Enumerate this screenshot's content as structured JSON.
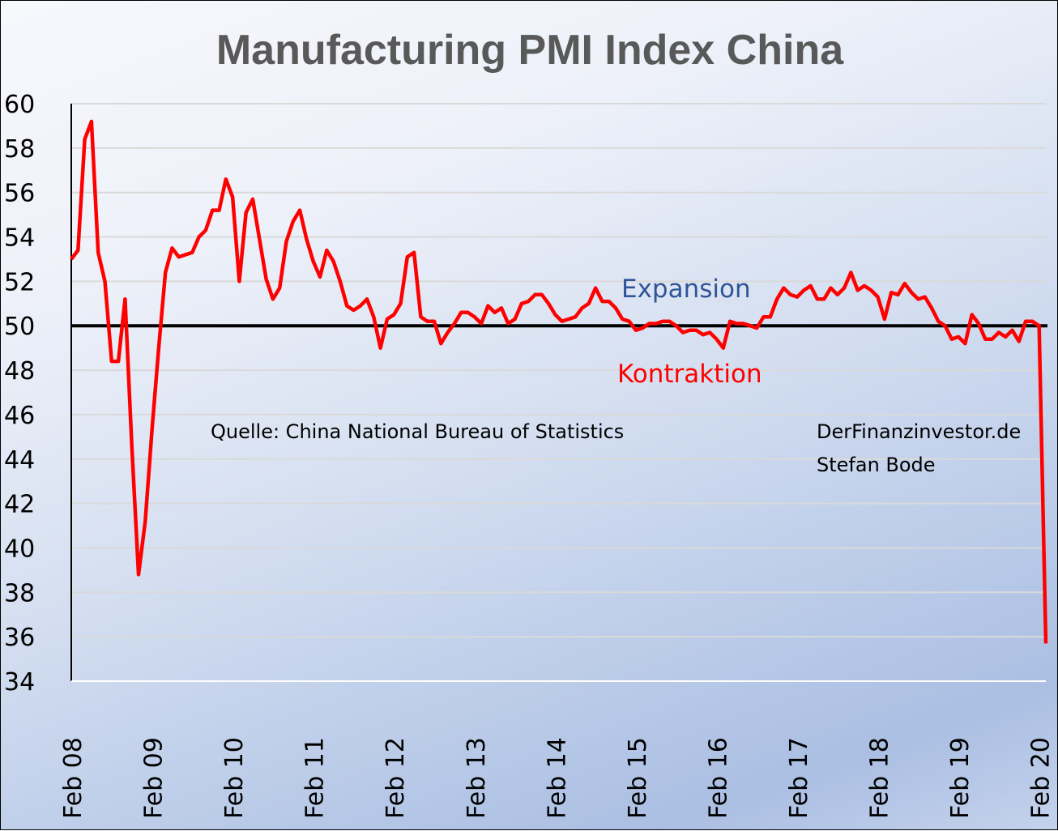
{
  "chart_data": {
    "type": "line",
    "title": "Manufacturing PMI Index China",
    "xlabel": "",
    "ylabel": "",
    "ylim": [
      34,
      60
    ],
    "yticks": [
      "60",
      "58",
      "56",
      "54",
      "52",
      "50",
      "48",
      "46",
      "44",
      "42",
      "40",
      "38",
      "36",
      "34"
    ],
    "ytick_values": [
      60,
      58,
      56,
      54,
      52,
      50,
      48,
      46,
      44,
      42,
      40,
      38,
      36,
      34
    ],
    "xticks": [
      "Feb 08",
      "Feb 09",
      "Feb 10",
      "Feb 11",
      "Feb 12",
      "Feb 13",
      "Feb 14",
      "Feb 15",
      "Feb 16",
      "Feb 17",
      "Feb 18",
      "Feb 19",
      "Feb 20"
    ],
    "x_start": "Feb 08",
    "x_end": "Feb 20",
    "grid": true,
    "reference_line": 50,
    "series": [
      {
        "name": "Manufacturing PMI",
        "color": "#ff0000",
        "values": [
          53.0,
          53.4,
          58.4,
          59.2,
          53.3,
          52.0,
          48.4,
          48.4,
          51.2,
          44.6,
          38.8,
          41.2,
          45.3,
          49.0,
          52.4,
          53.5,
          53.1,
          53.2,
          53.3,
          54.0,
          54.3,
          55.2,
          55.2,
          56.6,
          55.8,
          52.0,
          55.1,
          55.7,
          53.9,
          52.1,
          51.2,
          51.7,
          53.8,
          54.7,
          55.2,
          53.9,
          52.9,
          52.2,
          53.4,
          52.9,
          52.0,
          50.9,
          50.7,
          50.9,
          51.2,
          50.4,
          49.0,
          50.3,
          50.5,
          51.0,
          53.1,
          53.3,
          50.4,
          50.2,
          50.2,
          49.2,
          49.7,
          50.1,
          50.6,
          50.6,
          50.4,
          50.1,
          50.9,
          50.6,
          50.8,
          50.1,
          50.3,
          51.0,
          51.1,
          51.4,
          51.4,
          51.0,
          50.5,
          50.2,
          50.3,
          50.4,
          50.8,
          51.0,
          51.7,
          51.1,
          51.1,
          50.8,
          50.3,
          50.2,
          49.8,
          49.9,
          50.1,
          50.1,
          50.2,
          50.2,
          50.0,
          49.7,
          49.8,
          49.8,
          49.6,
          49.7,
          49.4,
          49.0,
          50.2,
          50.1,
          50.1,
          50.0,
          49.9,
          50.4,
          50.4,
          51.2,
          51.7,
          51.4,
          51.3,
          51.6,
          51.8,
          51.2,
          51.2,
          51.7,
          51.4,
          51.7,
          52.4,
          51.6,
          51.8,
          51.6,
          51.3,
          50.3,
          51.5,
          51.4,
          51.9,
          51.5,
          51.2,
          51.3,
          50.8,
          50.2,
          50.0,
          49.4,
          49.5,
          49.2,
          50.5,
          50.1,
          49.4,
          49.4,
          49.7,
          49.5,
          49.8,
          49.3,
          50.2,
          50.2,
          50.0,
          35.7
        ]
      }
    ],
    "annotations": {
      "expansion": "Expansion",
      "contraction": "Kontraktion",
      "source": "Quelle: China National Bureau of Statistics",
      "site": "DerFinanzinvestor.de",
      "author": "Stefan Bode"
    }
  }
}
